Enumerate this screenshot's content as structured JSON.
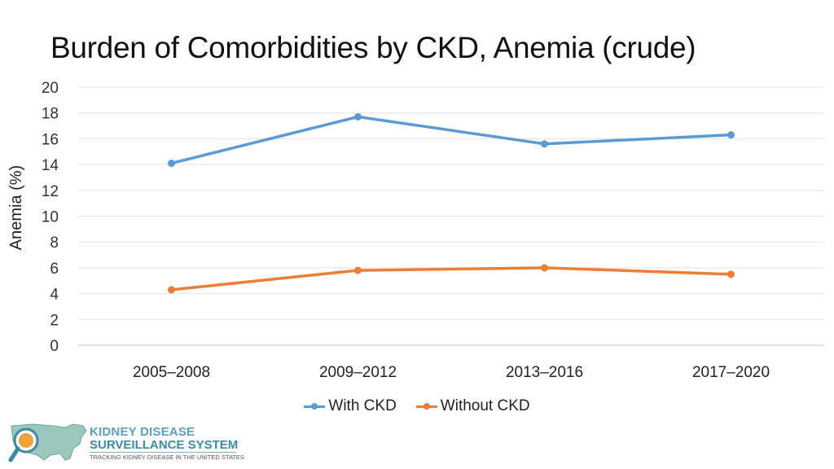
{
  "title": "Burden of Comorbidities by CKD, Anemia (crude)",
  "chart_data": {
    "type": "line",
    "title": "Burden of Comorbidities by CKD, Anemia (crude)",
    "xlabel": "",
    "ylabel": "Anemia (%)",
    "categories": [
      "2005–2008",
      "2009–2012",
      "2013–2016",
      "2017–2020"
    ],
    "ylim": [
      0,
      20
    ],
    "yticks": [
      0,
      2,
      4,
      6,
      8,
      10,
      12,
      14,
      16,
      18,
      20
    ],
    "grid": true,
    "legend_position": "bottom-center",
    "series": [
      {
        "name": "With CKD",
        "color": "#5b9bd5",
        "values": [
          14.1,
          17.7,
          15.6,
          16.3
        ]
      },
      {
        "name": "Without CKD",
        "color": "#ed7d31",
        "values": [
          4.3,
          5.8,
          6.0,
          5.5
        ]
      }
    ]
  },
  "logo": {
    "line1": "KIDNEY DISEASE",
    "line2": "SURVEILLANCE SYSTEM",
    "line3": "TRACKING KIDNEY DISEASE IN THE UNITED STATES"
  }
}
